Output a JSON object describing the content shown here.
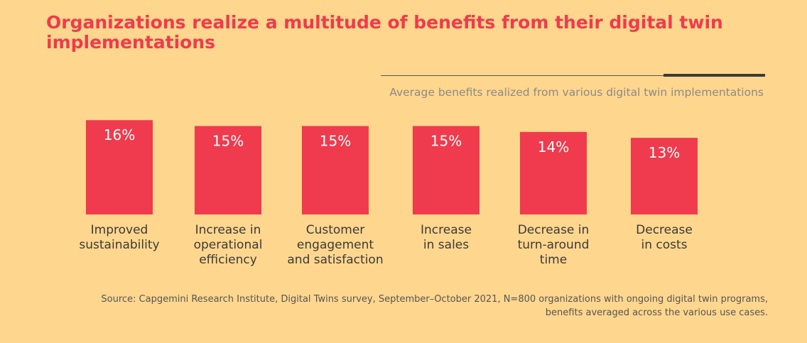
{
  "title": "Organizations realize a multitude of benefits from their digital twin implementations",
  "subtitle": "Average benefits realized from various digital twin implementations",
  "source": "Source: Capgemini Research Institute, Digital Twins survey, September–October 2021, N=800 organizations with ongoing digital twin programs, benefits averaged across the various use cases.",
  "colors": {
    "background": "#FFD68D",
    "bar": "#EF3B4D",
    "title": "#EF3B4D"
  },
  "chart_data": {
    "type": "bar",
    "title": "Average benefits realized from various digital twin implementations",
    "categories": [
      "Improved sustainability",
      "Increase in operational efficiency",
      "Customer engagement and satisfaction",
      "Increase in sales",
      "Decrease in turn-around time",
      "Decrease in costs"
    ],
    "values": [
      16,
      15,
      15,
      15,
      14,
      13
    ],
    "value_labels": [
      "16%",
      "15%",
      "15%",
      "15%",
      "14%",
      "13%"
    ],
    "xlabel": "",
    "ylabel": "",
    "unit": "%"
  }
}
